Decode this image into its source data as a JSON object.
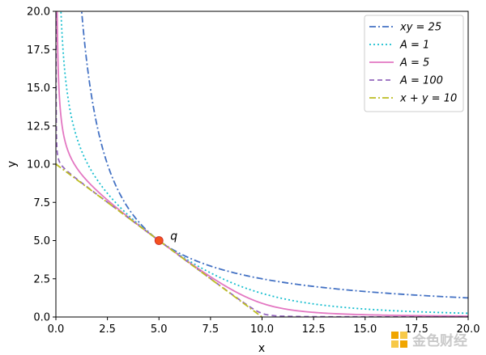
{
  "chart_data": {
    "type": "line",
    "title": "",
    "xlabel": "x",
    "ylabel": "y",
    "xlim": [
      0,
      20
    ],
    "ylim": [
      0,
      20
    ],
    "xticks": [
      "0.0",
      "2.5",
      "5.0",
      "7.5",
      "10.0",
      "12.5",
      "15.0",
      "17.5",
      "20.0"
    ],
    "yticks": [
      "0.0",
      "2.5",
      "5.0",
      "7.5",
      "10.0",
      "12.5",
      "15.0",
      "17.5",
      "20.0"
    ],
    "grid": false,
    "legend_position": "top-right",
    "series": [
      {
        "name": "xy = 25",
        "color": "#4472c4",
        "style": "dashdot",
        "kind": "hyperbola",
        "k": 25
      },
      {
        "name": "A = 1",
        "color": "#17becf",
        "style": "dotted",
        "kind": "stableswap",
        "A": 1
      },
      {
        "name": "A = 5",
        "color": "#e377c2",
        "style": "solid",
        "kind": "stableswap",
        "A": 5
      },
      {
        "name": "A = 100",
        "color": "#9467bd",
        "style": "dashed",
        "kind": "stableswap",
        "A": 100
      },
      {
        "name": "x + y = 10",
        "color": "#bcbd22",
        "style": "dashdot",
        "kind": "linear",
        "sum": 10
      }
    ],
    "points": [
      {
        "label": "q",
        "x": 5,
        "y": 5,
        "color": "#f4511e"
      }
    ]
  },
  "watermark": {
    "text": "金色财经",
    "color": "#f0a500"
  }
}
